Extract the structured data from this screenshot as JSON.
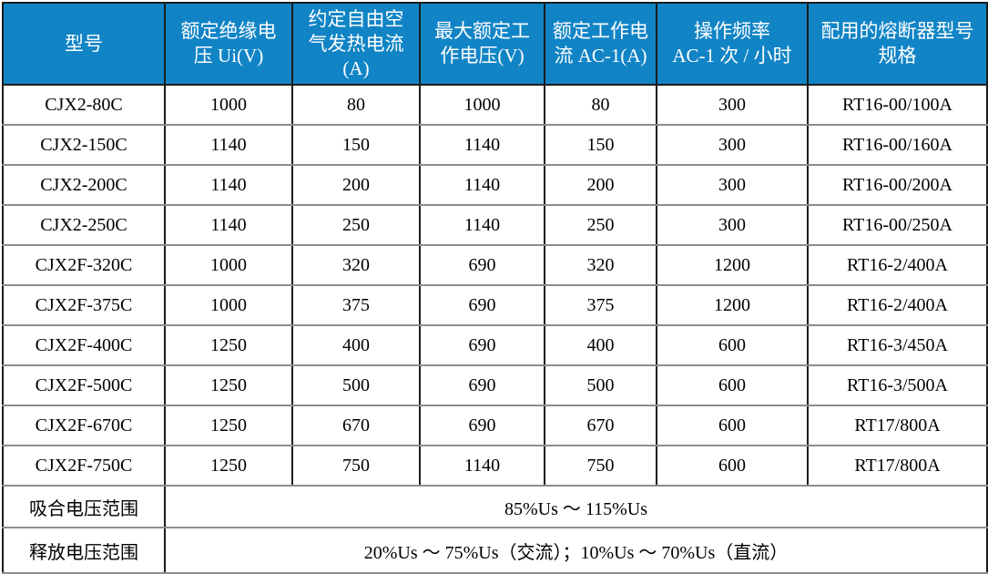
{
  "colors": {
    "header_bg": "#1184C6",
    "header_text": "#FFFFFF",
    "body_text": "#000000",
    "grid_vertical": "#1C1C1C",
    "grid_horizontal": "#8C8C8C",
    "outer_border": "#1C1C1C"
  },
  "table": {
    "columns": [
      "型号",
      "额定绝缘电\n压 Ui(V)",
      "约定自由空\n气发热电流\n(A)",
      "最大额定工\n作电压(V)",
      "额定工作电\n流 AC-1(A)",
      "操作频率\nAC-1 次 / 小时",
      "配用的熔断器型号\n规格"
    ],
    "rows": [
      [
        "CJX2-80C",
        "1000",
        "80",
        "1000",
        "80",
        "300",
        "RT16-00/100A"
      ],
      [
        "CJX2-150C",
        "1140",
        "150",
        "1140",
        "150",
        "300",
        "RT16-00/160A"
      ],
      [
        "CJX2-200C",
        "1140",
        "200",
        "1140",
        "200",
        "300",
        "RT16-00/200A"
      ],
      [
        "CJX2-250C",
        "1140",
        "250",
        "1140",
        "250",
        "300",
        "RT16-00/250A"
      ],
      [
        "CJX2F-320C",
        "1000",
        "320",
        "690",
        "320",
        "1200",
        "RT16-2/400A"
      ],
      [
        "CJX2F-375C",
        "1000",
        "375",
        "690",
        "375",
        "1200",
        "RT16-2/400A"
      ],
      [
        "CJX2F-400C",
        "1250",
        "400",
        "690",
        "400",
        "600",
        "RT16-3/450A"
      ],
      [
        "CJX2F-500C",
        "1250",
        "500",
        "690",
        "500",
        "600",
        "RT16-3/500A"
      ],
      [
        "CJX2F-670C",
        "1250",
        "670",
        "690",
        "670",
        "600",
        "RT17/800A"
      ],
      [
        "CJX2F-750C",
        "1250",
        "750",
        "1140",
        "750",
        "600",
        "RT17/800A"
      ]
    ],
    "footer_rows": [
      {
        "label": "吸合电压范围",
        "value": "85%Us ～ 115%Us"
      },
      {
        "label": "释放电压范围",
        "value": "20%Us ～ 75%Us（交流）；10%Us ～ 70%Us（直流）"
      }
    ]
  }
}
